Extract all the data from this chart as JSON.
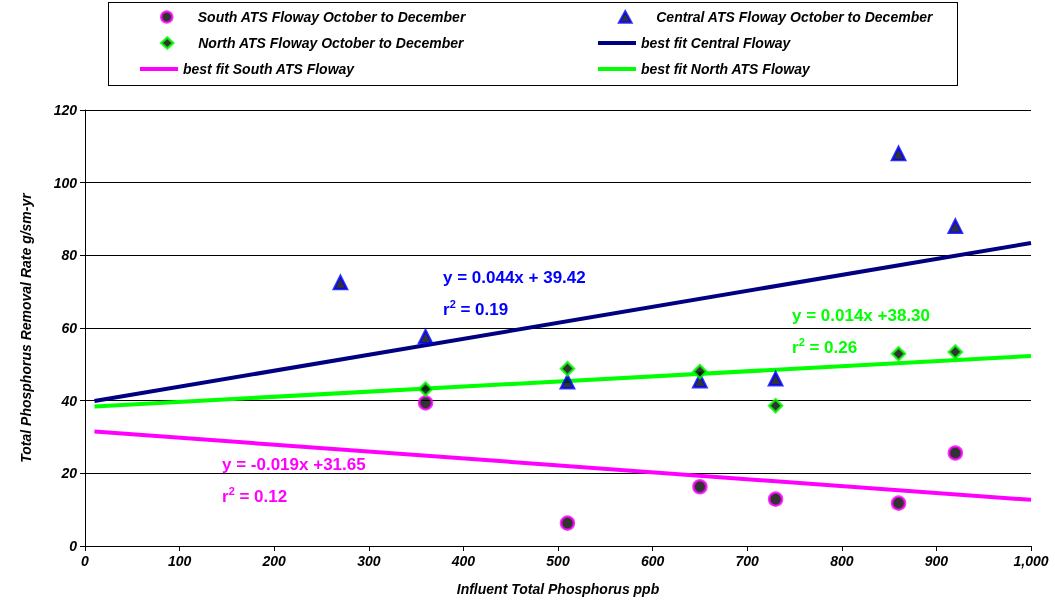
{
  "chart_data": {
    "type": "scatter",
    "xlabel": "Influent Total Phosphorus ppb",
    "ylabel": "Total Phosphorus Removal Rate g/sm-yr",
    "xlim": [
      0,
      1000
    ],
    "xticks": [
      0,
      100,
      200,
      300,
      400,
      500,
      600,
      700,
      800,
      900,
      {
        "value": 1000,
        "label": "1,000"
      }
    ],
    "ylim": [
      0,
      120
    ],
    "yticks": [
      0,
      20,
      40,
      60,
      80,
      100,
      120
    ],
    "grid": "y",
    "legend": "top",
    "series": [
      {
        "name": "South ATS Floway October to December",
        "marker": "circle",
        "color": "#ff00ff",
        "x": [
          360,
          510,
          650,
          730,
          860,
          920
        ],
        "values": [
          39.4,
          6.3,
          16.3,
          12.9,
          11.8,
          25.6
        ]
      },
      {
        "name": "Central ATS Floway October to December",
        "marker": "triangle",
        "color": "#0000ff",
        "x": [
          270,
          360,
          510,
          650,
          730,
          860,
          920
        ],
        "values": [
          72.5,
          57.6,
          45.2,
          45.5,
          46,
          108,
          88
        ]
      },
      {
        "name": "North ATS Floway October to December",
        "marker": "diamond",
        "color": "#00ff00",
        "x": [
          360,
          510,
          650,
          730,
          860,
          920
        ],
        "values": [
          43.2,
          48.8,
          48,
          38.6,
          52.9,
          53.4
        ]
      },
      {
        "name": "best fit Central Floway",
        "type": "line",
        "marker": "none",
        "color": "#000080",
        "x": [
          10,
          1000
        ],
        "values": [
          39.9,
          83.4
        ]
      },
      {
        "name": "best fit South ATS Floway",
        "type": "line",
        "marker": "none",
        "color": "#ff00ff",
        "x": [
          10,
          1000
        ],
        "values": [
          31.5,
          12.7
        ]
      },
      {
        "name": "best fit North ATS Floway",
        "type": "line",
        "marker": "none",
        "color": "#00ff00",
        "x": [
          10,
          1000
        ],
        "values": [
          38.4,
          52.3
        ]
      }
    ],
    "annotations": [
      "y = -0.019x +31.65\nr$^{2}$ = 0.12",
      "y = 0.044x + 39.42\nr$^{2}$ = 0.19",
      "y = 0.014x +38.30\nr$^{2}$ = 0.26"
    ]
  }
}
